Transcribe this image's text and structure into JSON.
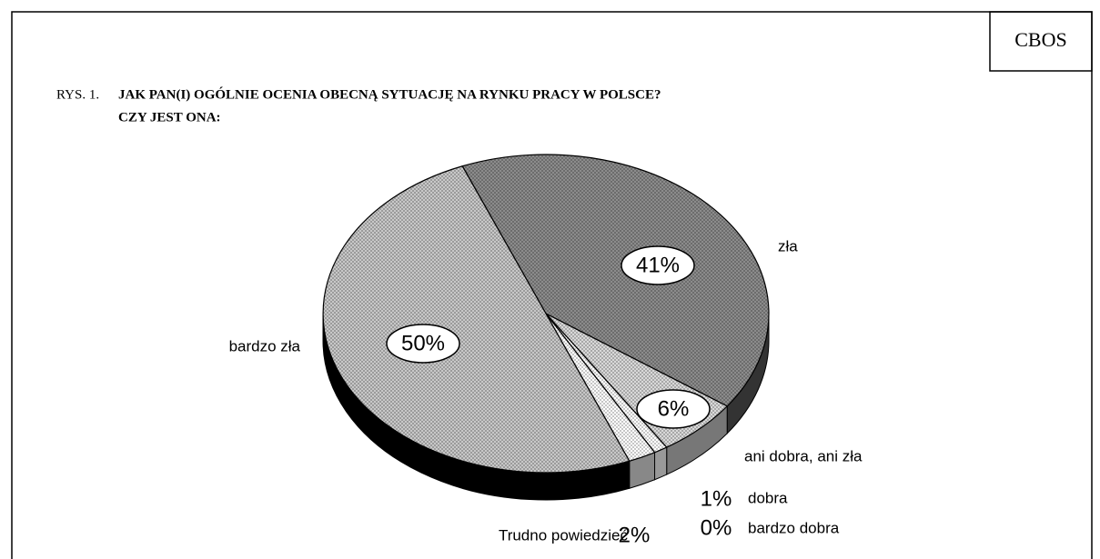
{
  "chart_data": {
    "type": "pie",
    "source": "CBOS",
    "figure_label": "RYS. 1.",
    "title": "JAK PAN(I) OGÓLNIE OCENIA OBECNĄ SYTUACJĘ NA RYNKU PRACY W POLSCE?",
    "subtitle": "CZY JEST ONA:",
    "categories": [
      "zła",
      "ani dobra, ani zła",
      "dobra",
      "bardzo dobra",
      "Trudno powiedzieć",
      "bardzo zła"
    ],
    "values": [
      41,
      6,
      1,
      0,
      2,
      50
    ],
    "value_labels": [
      "41%",
      "6%",
      "1%",
      "0%",
      "2%",
      "50%"
    ],
    "colors": [
      "#8c8c8c",
      "#d9d9d9",
      "#ffffff",
      "#ffffff",
      "#ffffff",
      "#c8c8c8"
    ]
  }
}
